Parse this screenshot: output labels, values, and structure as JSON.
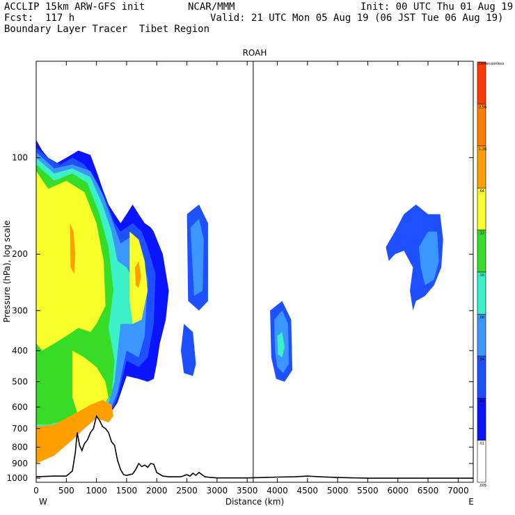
{
  "header": {
    "model": "ACCLIP 15km ARW-GFS init",
    "org": "NCAR/MMM",
    "init": "Init: 00 UTC Thu 01 Aug 19",
    "fcst": "Fcst:  117 h",
    "valid": "Valid: 21 UTC Mon 05 Aug 19 (06 JST Tue 06 Aug 19)",
    "field": "Boundary Layer Tracer  Tibet Region"
  },
  "chart_data": {
    "type": "heatmap",
    "title": "ROAH",
    "xlabel": "Distance (km)",
    "ylabel": "Pressure (hPa), log scale",
    "x_ticks": [
      0,
      500,
      1000,
      1500,
      2000,
      2500,
      3000,
      3500,
      4000,
      4500,
      5000,
      5500,
      6000,
      6500,
      7000
    ],
    "xlim": [
      0,
      7250
    ],
    "y_ticks": [
      100,
      200,
      300,
      400,
      500,
      600,
      700,
      800,
      900,
      1000
    ],
    "ylim": [
      50,
      1030
    ],
    "y_scale": "log",
    "x_left_label": "W",
    "x_right_label": "E",
    "marker_line_x_km": 3600,
    "colorbar": {
      "levels": [
        "Dimensionless",
        "2.56",
        "1.28",
        ".64",
        ".32",
        ".16",
        ".08",
        ".04",
        ".02",
        ".01",
        ".005"
      ],
      "colors": [
        "#ff3c00",
        "#ff7d00",
        "#ffa000",
        "#f8ff2b",
        "#36dc26",
        "#3cf0c8",
        "#3c96ff",
        "#1e50ff",
        "#0a14ff",
        "#ffffff"
      ]
    },
    "terrain_profile": {
      "x_km": [
        0,
        300,
        500,
        600,
        650,
        680,
        720,
        760,
        800,
        850,
        900,
        950,
        1000,
        1050,
        1100,
        1150,
        1200,
        1250,
        1300,
        1350,
        1400,
        1450,
        1500,
        1600,
        1650,
        1700,
        1750,
        1800,
        1850,
        1900,
        1950,
        2000,
        2100,
        2200,
        2400,
        2500,
        2550,
        2600,
        2650,
        2700,
        2750,
        2800,
        2900,
        3000,
        3200,
        3500,
        3800,
        4000,
        4300,
        4500,
        4700,
        5000,
        5500,
        6000,
        6500,
        7000,
        7250
      ],
      "p_hpa": [
        990,
        985,
        985,
        950,
        830,
        720,
        790,
        820,
        780,
        760,
        720,
        700,
        640,
        660,
        690,
        700,
        720,
        770,
        790,
        880,
        940,
        975,
        980,
        970,
        940,
        900,
        920,
        910,
        925,
        900,
        905,
        960,
        985,
        990,
        990,
        975,
        985,
        965,
        980,
        960,
        975,
        990,
        995,
        998,
        998,
        998,
        995,
        992,
        990,
        985,
        990,
        995,
        1000,
        1000,
        1000,
        1000,
        1000
      ]
    },
    "tracer_regions": [
      {
        "level": ".01",
        "points": [
          [
            0,
            88
          ],
          [
            100,
            95
          ],
          [
            200,
            100
          ],
          [
            300,
            105
          ],
          [
            500,
            100
          ],
          [
            700,
            95
          ],
          [
            900,
            98
          ],
          [
            1000,
            110
          ],
          [
            1100,
            125
          ],
          [
            1200,
            140
          ],
          [
            1300,
            150
          ],
          [
            1400,
            160
          ],
          [
            1500,
            150
          ],
          [
            1600,
            140
          ],
          [
            1700,
            150
          ],
          [
            1800,
            160
          ],
          [
            1900,
            165
          ],
          [
            1950,
            170
          ],
          [
            2100,
            200
          ],
          [
            2200,
            260
          ],
          [
            2150,
            320
          ],
          [
            2050,
            380
          ],
          [
            2000,
            440
          ],
          [
            1950,
            490
          ],
          [
            1850,
            500
          ],
          [
            1700,
            490
          ],
          [
            1500,
            480
          ],
          [
            1350,
            580
          ],
          [
            1300,
            600
          ],
          [
            1200,
            640
          ],
          [
            1000,
            630
          ],
          [
            800,
            660
          ],
          [
            500,
            700
          ],
          [
            300,
            720
          ],
          [
            100,
            720
          ],
          [
            0,
            720
          ]
        ]
      },
      {
        "level": ".02",
        "points": [
          [
            0,
            93
          ],
          [
            200,
            100
          ],
          [
            400,
            105
          ],
          [
            600,
            100
          ],
          [
            800,
            105
          ],
          [
            1000,
            118
          ],
          [
            1150,
            135
          ],
          [
            1300,
            160
          ],
          [
            1400,
            170
          ],
          [
            1600,
            160
          ],
          [
            1750,
            170
          ],
          [
            1850,
            190
          ],
          [
            1980,
            230
          ],
          [
            1950,
            330
          ],
          [
            1850,
            420
          ],
          [
            1700,
            450
          ],
          [
            1500,
            430
          ],
          [
            1350,
            560
          ],
          [
            1300,
            590
          ],
          [
            1200,
            630
          ],
          [
            1000,
            625
          ],
          [
            800,
            655
          ],
          [
            500,
            695
          ],
          [
            200,
            715
          ],
          [
            0,
            715
          ]
        ]
      },
      {
        "level": ".04",
        "points": [
          [
            0,
            96
          ],
          [
            300,
            108
          ],
          [
            600,
            105
          ],
          [
            900,
            110
          ],
          [
            1100,
            130
          ],
          [
            1250,
            155
          ],
          [
            1400,
            185
          ],
          [
            1600,
            175
          ],
          [
            1750,
            200
          ],
          [
            1850,
            240
          ],
          [
            1800,
            360
          ],
          [
            1700,
            420
          ],
          [
            1500,
            400
          ],
          [
            1350,
            540
          ],
          [
            1250,
            600
          ],
          [
            1100,
            620
          ],
          [
            900,
            640
          ],
          [
            600,
            680
          ],
          [
            300,
            705
          ],
          [
            0,
            705
          ]
        ]
      },
      {
        "level": ".08",
        "points": [
          [
            0,
            100
          ],
          [
            300,
            112
          ],
          [
            600,
            108
          ],
          [
            900,
            115
          ],
          [
            1100,
            140
          ],
          [
            1250,
            170
          ],
          [
            1350,
            210
          ],
          [
            1500,
            220
          ],
          [
            1650,
            250
          ],
          [
            1600,
            330
          ],
          [
            1400,
            330
          ],
          [
            1300,
            500
          ],
          [
            1200,
            580
          ],
          [
            1000,
            610
          ],
          [
            700,
            650
          ],
          [
            400,
            680
          ],
          [
            0,
            690
          ]
        ]
      },
      {
        "level": ".16",
        "points": [
          [
            0,
            105
          ],
          [
            300,
            118
          ],
          [
            600,
            112
          ],
          [
            850,
            120
          ],
          [
            1050,
            150
          ],
          [
            1200,
            190
          ],
          [
            1280,
            260
          ],
          [
            1200,
            340
          ],
          [
            1300,
            430
          ],
          [
            1250,
            550
          ],
          [
            1100,
            600
          ],
          [
            800,
            630
          ],
          [
            500,
            660
          ],
          [
            200,
            680
          ],
          [
            0,
            680
          ]
        ]
      },
      {
        "level": ".32",
        "points": [
          [
            0,
            110
          ],
          [
            200,
            125
          ],
          [
            500,
            118
          ],
          [
            800,
            128
          ],
          [
            1000,
            160
          ],
          [
            1120,
            210
          ],
          [
            1150,
            290
          ],
          [
            1000,
            330
          ],
          [
            900,
            350
          ],
          [
            700,
            340
          ],
          [
            500,
            360
          ],
          [
            300,
            380
          ],
          [
            100,
            400
          ],
          [
            0,
            380
          ]
        ]
      },
      {
        "level": ".32",
        "points": [
          [
            600,
            400
          ],
          [
            800,
            420
          ],
          [
            1000,
            450
          ],
          [
            1150,
            500
          ],
          [
            1200,
            560
          ],
          [
            1100,
            600
          ],
          [
            900,
            620
          ],
          [
            700,
            640
          ],
          [
            600,
            560
          ]
        ]
      },
      {
        "level": ".32",
        "points": [
          [
            1550,
            170
          ],
          [
            1700,
            180
          ],
          [
            1800,
            210
          ],
          [
            1850,
            260
          ],
          [
            1750,
            320
          ],
          [
            1600,
            330
          ],
          [
            1550,
            280
          ]
        ]
      },
      {
        "level": ".64",
        "points": [
          [
            0,
            690
          ],
          [
            300,
            680
          ],
          [
            500,
            650
          ],
          [
            700,
            620
          ],
          [
            900,
            590
          ],
          [
            1100,
            570
          ],
          [
            1250,
            590
          ],
          [
            1280,
            640
          ],
          [
            1200,
            670
          ],
          [
            1000,
            650
          ],
          [
            800,
            700
          ],
          [
            600,
            760
          ],
          [
            300,
            850
          ],
          [
            0,
            900
          ]
        ]
      },
      {
        "level": ".64",
        "points": [
          [
            560,
            160
          ],
          [
            620,
            170
          ],
          [
            650,
            200
          ],
          [
            630,
            230
          ],
          [
            570,
            220
          ]
        ]
      },
      {
        "level": ".64",
        "points": [
          [
            1640,
            220
          ],
          [
            1700,
            210
          ],
          [
            1740,
            235
          ],
          [
            1700,
            255
          ],
          [
            1650,
            250
          ]
        ]
      },
      {
        "level": ".02",
        "points": [
          [
            2450,
            330
          ],
          [
            2600,
            350
          ],
          [
            2650,
            440
          ],
          [
            2600,
            480
          ],
          [
            2450,
            470
          ],
          [
            2400,
            400
          ]
        ]
      },
      {
        "level": ".02",
        "points": [
          [
            2500,
            150
          ],
          [
            2700,
            140
          ],
          [
            2850,
            160
          ],
          [
            2850,
            280
          ],
          [
            2700,
            300
          ],
          [
            2520,
            280
          ]
        ]
      },
      {
        "level": ".04",
        "points": [
          [
            2560,
            165
          ],
          [
            2700,
            155
          ],
          [
            2780,
            180
          ],
          [
            2760,
            260
          ],
          [
            2620,
            270
          ]
        ]
      },
      {
        "level": ".02",
        "points": [
          [
            3880,
            300
          ],
          [
            4080,
            280
          ],
          [
            4230,
            320
          ],
          [
            4250,
            460
          ],
          [
            4120,
            500
          ],
          [
            3980,
            490
          ],
          [
            3900,
            420
          ]
        ]
      },
      {
        "level": ".04",
        "points": [
          [
            3950,
            320
          ],
          [
            4080,
            300
          ],
          [
            4180,
            330
          ],
          [
            4190,
            440
          ],
          [
            4100,
            470
          ],
          [
            4000,
            450
          ],
          [
            3960,
            400
          ]
        ]
      },
      {
        "level": ".08",
        "points": [
          [
            4000,
            360
          ],
          [
            4080,
            350
          ],
          [
            4120,
            390
          ],
          [
            4080,
            420
          ],
          [
            4010,
            410
          ]
        ]
      },
      {
        "level": ".02",
        "points": [
          [
            5800,
            190
          ],
          [
            5950,
            170
          ],
          [
            6100,
            150
          ],
          [
            6300,
            140
          ],
          [
            6500,
            150
          ],
          [
            6700,
            150
          ],
          [
            6750,
            180
          ],
          [
            6720,
            220
          ],
          [
            6600,
            250
          ],
          [
            6450,
            270
          ],
          [
            6300,
            280
          ],
          [
            6250,
            300
          ],
          [
            6200,
            260
          ],
          [
            6250,
            220
          ],
          [
            6100,
            195
          ],
          [
            5950,
            200
          ],
          [
            5850,
            210
          ]
        ]
      },
      {
        "level": ".04",
        "points": [
          [
            6350,
            190
          ],
          [
            6500,
            170
          ],
          [
            6650,
            170
          ],
          [
            6680,
            210
          ],
          [
            6600,
            240
          ],
          [
            6450,
            250
          ],
          [
            6380,
            220
          ]
        ]
      }
    ]
  }
}
